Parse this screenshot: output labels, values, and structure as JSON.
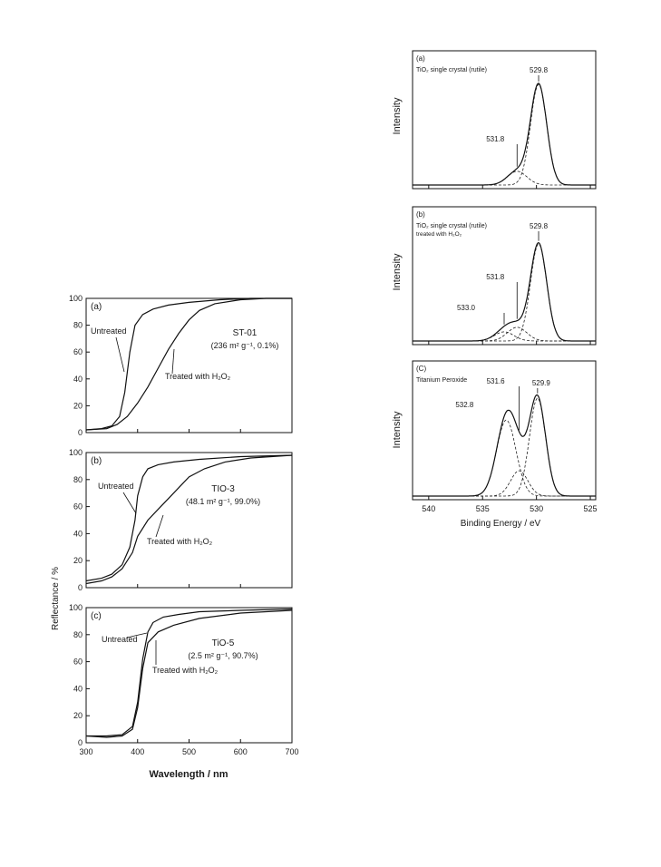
{
  "reflectance": {
    "ylabel": "Reflectance / %",
    "xlabel": "Wavelength / nm",
    "yticks": [
      "0",
      "20",
      "40",
      "60",
      "80",
      "100"
    ],
    "xticks": [
      "300",
      "400",
      "500",
      "600",
      "700"
    ],
    "panels": [
      {
        "tag": "(a)",
        "sample": "ST-01",
        "props": "(236 m² g⁻¹, 0.1%)",
        "untreated_label": "Untreated",
        "treated_label": "Treated with H₂O₂",
        "untreated": {
          "x": [
            300,
            330,
            350,
            365,
            375,
            385,
            395,
            410,
            430,
            460,
            500,
            560,
            620,
            700
          ],
          "y": [
            2,
            3,
            5,
            12,
            30,
            60,
            80,
            88,
            92,
            95,
            97,
            99,
            100,
            100
          ]
        },
        "treated": {
          "x": [
            300,
            340,
            360,
            380,
            400,
            420,
            440,
            460,
            480,
            500,
            520,
            550,
            600,
            650,
            700
          ],
          "y": [
            2,
            3,
            6,
            12,
            22,
            34,
            48,
            62,
            74,
            84,
            91,
            96,
            99,
            100,
            100
          ]
        }
      },
      {
        "tag": "(b)",
        "sample": "TIO-3",
        "props": "(48.1 m² g⁻¹, 99.0%)",
        "untreated_label": "Untreated",
        "treated_label": "Treated with H₂O₂",
        "untreated": {
          "x": [
            300,
            330,
            350,
            370,
            385,
            395,
            400,
            410,
            420,
            440,
            470,
            520,
            600,
            700
          ],
          "y": [
            5,
            7,
            10,
            17,
            30,
            50,
            68,
            82,
            88,
            91,
            93,
            95,
            97,
            98
          ]
        },
        "treated": {
          "x": [
            300,
            330,
            350,
            370,
            390,
            400,
            420,
            440,
            460,
            480,
            500,
            530,
            570,
            620,
            700
          ],
          "y": [
            3,
            5,
            8,
            14,
            26,
            38,
            50,
            58,
            66,
            74,
            82,
            88,
            93,
            96,
            98
          ]
        }
      },
      {
        "tag": "(c)",
        "sample": "TiO-5",
        "props": "(2.5 m² g⁻¹, 90.7%)",
        "untreated_label": "Untreated",
        "treated_label": "Treated with H₂O₂",
        "untreated": {
          "x": [
            300,
            340,
            370,
            390,
            400,
            410,
            420,
            430,
            450,
            480,
            520,
            600,
            700
          ],
          "y": [
            5,
            5,
            6,
            12,
            30,
            62,
            82,
            89,
            93,
            95,
            97,
            98,
            99
          ]
        },
        "treated": {
          "x": [
            300,
            340,
            370,
            390,
            400,
            410,
            420,
            440,
            470,
            520,
            600,
            700
          ],
          "y": [
            5,
            4,
            5,
            10,
            26,
            55,
            74,
            82,
            87,
            92,
            96,
            98
          ]
        }
      }
    ]
  },
  "xps": {
    "ylabel": "Intensity",
    "xlabel": "Binding Energy / eV",
    "xticks": [
      "540",
      "535",
      "530",
      "525"
    ],
    "panels": [
      {
        "tag": "(a)",
        "title": "TiO₂ single crystal (rutile)",
        "subtitle": "",
        "peak_labels": [
          "529.8",
          "531.8"
        ],
        "components": [
          {
            "center": 529.8,
            "height": 0.88,
            "width": 0.75
          },
          {
            "center": 531.8,
            "height": 0.12,
            "width": 0.9
          }
        ]
      },
      {
        "tag": "(b)",
        "title": "TiO₂ single crystal (rutile)",
        "subtitle": "treated with H₂O₂",
        "peak_labels": [
          "529.8",
          "531.8",
          "533.0"
        ],
        "components": [
          {
            "center": 529.8,
            "height": 0.85,
            "width": 0.75
          },
          {
            "center": 531.8,
            "height": 0.12,
            "width": 0.9
          },
          {
            "center": 533.0,
            "height": 0.08,
            "width": 0.9
          }
        ]
      },
      {
        "tag": "(C)",
        "title": "Titanium Peroxide",
        "subtitle": "",
        "peak_labels": [
          "529.9",
          "531.6",
          "532.8"
        ],
        "components": [
          {
            "center": 529.9,
            "height": 0.85,
            "width": 0.75
          },
          {
            "center": 531.6,
            "height": 0.22,
            "width": 0.8
          },
          {
            "center": 532.8,
            "height": 0.66,
            "width": 0.9
          }
        ]
      }
    ]
  },
  "chart_data": [
    {
      "type": "line",
      "title": "",
      "panel": "(a)",
      "annotation": "ST-01 (236 m² g⁻¹, 0.1%)",
      "xlabel": "Wavelength / nm",
      "ylabel": "Reflectance / %",
      "xlim": [
        300,
        700
      ],
      "ylim": [
        0,
        100
      ],
      "series": [
        {
          "name": "Untreated",
          "x": [
            300,
            330,
            350,
            365,
            375,
            385,
            395,
            410,
            430,
            460,
            500,
            560,
            620,
            700
          ],
          "y": [
            2,
            3,
            5,
            12,
            30,
            60,
            80,
            88,
            92,
            95,
            97,
            99,
            100,
            100
          ]
        },
        {
          "name": "Treated with H₂O₂",
          "x": [
            300,
            340,
            360,
            380,
            400,
            420,
            440,
            460,
            480,
            500,
            520,
            550,
            600,
            650,
            700
          ],
          "y": [
            2,
            3,
            6,
            12,
            22,
            34,
            48,
            62,
            74,
            84,
            91,
            96,
            99,
            100,
            100
          ]
        }
      ]
    },
    {
      "type": "line",
      "title": "",
      "panel": "(b)",
      "annotation": "TIO-3 (48.1 m² g⁻¹, 99.0%)",
      "xlabel": "Wavelength / nm",
      "ylabel": "Reflectance / %",
      "xlim": [
        300,
        700
      ],
      "ylim": [
        0,
        100
      ],
      "series": [
        {
          "name": "Untreated",
          "x": [
            300,
            330,
            350,
            370,
            385,
            395,
            400,
            410,
            420,
            440,
            470,
            520,
            600,
            700
          ],
          "y": [
            5,
            7,
            10,
            17,
            30,
            50,
            68,
            82,
            88,
            91,
            93,
            95,
            97,
            98
          ]
        },
        {
          "name": "Treated with H₂O₂",
          "x": [
            300,
            330,
            350,
            370,
            390,
            400,
            420,
            440,
            460,
            480,
            500,
            530,
            570,
            620,
            700
          ],
          "y": [
            3,
            5,
            8,
            14,
            26,
            38,
            50,
            58,
            66,
            74,
            82,
            88,
            93,
            96,
            98
          ]
        }
      ]
    },
    {
      "type": "line",
      "title": "",
      "panel": "(c)",
      "annotation": "TiO-5 (2.5 m² g⁻¹, 90.7%)",
      "xlabel": "Wavelength / nm",
      "ylabel": "Reflectance / %",
      "xlim": [
        300,
        700
      ],
      "ylim": [
        0,
        100
      ],
      "series": [
        {
          "name": "Untreated",
          "x": [
            300,
            340,
            370,
            390,
            400,
            410,
            420,
            430,
            450,
            480,
            520,
            600,
            700
          ],
          "y": [
            5,
            5,
            6,
            12,
            30,
            62,
            82,
            89,
            93,
            95,
            97,
            98,
            99
          ]
        },
        {
          "name": "Treated with H₂O₂",
          "x": [
            300,
            340,
            370,
            390,
            400,
            410,
            420,
            440,
            470,
            520,
            600,
            700
          ],
          "y": [
            5,
            4,
            5,
            10,
            26,
            55,
            74,
            82,
            87,
            92,
            96,
            98
          ]
        }
      ]
    },
    {
      "type": "line",
      "title": "",
      "panel": "(a)",
      "annotation": "TiO₂ single crystal (rutile)",
      "xlabel": "Binding Energy / eV",
      "ylabel": "Intensity",
      "xlim": [
        541.5,
        524.5
      ],
      "peaks_eV": [
        529.8,
        531.8
      ]
    },
    {
      "type": "line",
      "title": "",
      "panel": "(b)",
      "annotation": "TiO₂ single crystal (rutile) treated with H₂O₂",
      "xlabel": "Binding Energy / eV",
      "ylabel": "Intensity",
      "xlim": [
        541.5,
        524.5
      ],
      "peaks_eV": [
        529.8,
        531.8,
        533.0
      ]
    },
    {
      "type": "line",
      "title": "",
      "panel": "(C)",
      "annotation": "Titanium Peroxide",
      "xlabel": "Binding Energy / eV",
      "ylabel": "Intensity",
      "xlim": [
        541.5,
        524.5
      ],
      "peaks_eV": [
        529.9,
        531.6,
        532.8
      ]
    }
  ]
}
